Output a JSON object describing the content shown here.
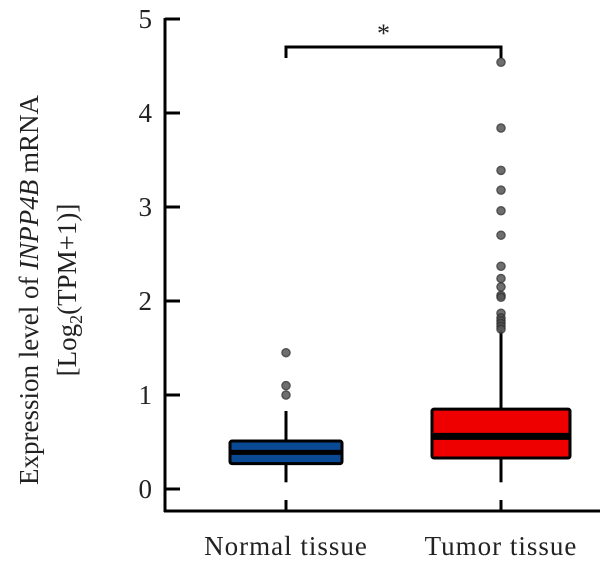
{
  "chart_data": {
    "type": "box",
    "title": "",
    "xlabel": "",
    "ylabel_line1_prefix": "Expression level of ",
    "ylabel_line1_gene": "INPP4B",
    "ylabel_line1_suffix": " mRNA",
    "ylabel_line2_prefix": "[Log",
    "ylabel_line2_sub": "2",
    "ylabel_line2_suffix": "(TPM+1)]",
    "ylim": [
      -0.25,
      5
    ],
    "yticks": [
      0,
      1,
      2,
      3,
      4,
      5
    ],
    "ytick_labels": [
      "0",
      "1",
      "2",
      "3",
      "4",
      "5"
    ],
    "grid": false,
    "categories": [
      "Normal tissue",
      "Tumor tissue"
    ],
    "series": [
      {
        "name": "Normal tissue",
        "color": "#0a4a94",
        "whisker_low": 0.05,
        "q1": 0.27,
        "median": 0.39,
        "q3": 0.51,
        "whisker_high": 0.83,
        "outliers": [
          1.45,
          1.1,
          1.0
        ]
      },
      {
        "name": "Tumor tissue",
        "color": "#ee0000",
        "whisker_low": 0.05,
        "q1": 0.33,
        "median": 0.56,
        "q3": 0.85,
        "whisker_high": 1.69,
        "outliers": [
          4.54,
          3.84,
          3.39,
          3.18,
          2.96,
          2.7,
          2.37,
          2.24,
          2.15,
          2.06,
          2.04,
          1.87,
          1.82,
          1.79,
          1.76,
          1.73,
          1.7
        ]
      }
    ],
    "significance": {
      "label": "*",
      "from": "Normal tissue",
      "to": "Tumor tissue",
      "y": 4.7
    }
  }
}
